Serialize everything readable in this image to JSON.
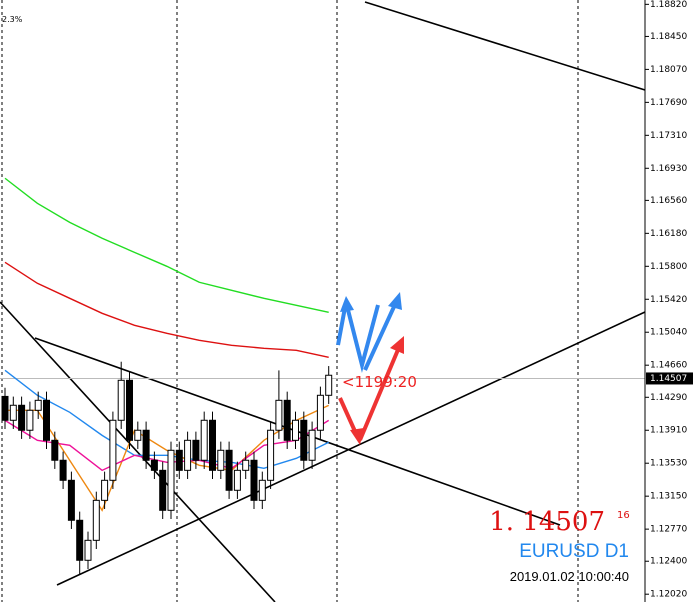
{
  "chart_data": {
    "type": "candlestick",
    "corner_label": "2.3%",
    "timer_label": "<1199:20",
    "price_display": "1. 14507",
    "price_display_sup": "16",
    "symbol": "EURUSD D1",
    "timestamp": "2019.01.02 10:00:40",
    "current_price": 1.14507,
    "ylim": [
      1.1193,
      1.1887
    ],
    "yticks": [
      {
        "value": 1.1882,
        "label": "1.18820"
      },
      {
        "value": 1.1845,
        "label": "1.18450"
      },
      {
        "value": 1.1807,
        "label": "1.18070"
      },
      {
        "value": 1.1769,
        "label": "1.17690"
      },
      {
        "value": 1.1731,
        "label": "1.17310"
      },
      {
        "value": 1.1693,
        "label": "1.16930"
      },
      {
        "value": 1.1656,
        "label": "1.16560"
      },
      {
        "value": 1.1618,
        "label": "1.16180"
      },
      {
        "value": 1.158,
        "label": "1.15800"
      },
      {
        "value": 1.1542,
        "label": "1.15420"
      },
      {
        "value": 1.1504,
        "label": "1.15040"
      },
      {
        "value": 1.1466,
        "label": "1.14660"
      },
      {
        "value": 1.1429,
        "label": "1.14290"
      },
      {
        "value": 1.1391,
        "label": "1.13910"
      },
      {
        "value": 1.1353,
        "label": "1.13530"
      },
      {
        "value": 1.1315,
        "label": "1.13150"
      },
      {
        "value": 1.1277,
        "label": "1.12770"
      },
      {
        "value": 1.124,
        "label": "1.12400"
      },
      {
        "value": 1.1202,
        "label": "1.12020"
      }
    ],
    "open": [
      1.143,
      1.14025,
      1.14198,
      1.1391,
      1.1414,
      1.14255,
      1.13794,
      1.13564,
      1.13333,
      1.12872,
      1.12411,
      1.12641,
      1.13102,
      1.13333,
      1.14025,
      1.14486,
      1.13794,
      1.1391,
      1.13564,
      1.13448,
      1.12987,
      1.13679,
      1.13448,
      1.13794,
      1.13564,
      1.14025,
      1.13448,
      1.13679,
      1.13218,
      1.13448,
      1.13564,
      1.13102,
      1.13333,
      1.1391,
      1.14255,
      1.13794,
      1.14025,
      1.13564,
      1.1391,
      1.14313
    ],
    "high": [
      1.144,
      1.14298,
      1.14298,
      1.1424,
      1.14355,
      1.14355,
      1.13894,
      1.13664,
      1.13433,
      1.12972,
      1.12741,
      1.13202,
      1.13433,
      1.14125,
      1.147,
      1.14586,
      1.1401,
      1.1401,
      1.13664,
      1.13548,
      1.13779,
      1.13779,
      1.13894,
      1.13894,
      1.14125,
      1.14125,
      1.13779,
      1.13779,
      1.13548,
      1.13664,
      1.13664,
      1.13433,
      1.1401,
      1.146,
      1.14355,
      1.14125,
      1.14125,
      1.1401,
      1.14413,
      1.1465
    ],
    "low": [
      1.13925,
      1.13925,
      1.1381,
      1.1381,
      1.1404,
      1.13694,
      1.13464,
      1.13233,
      1.12772,
      1.1225,
      1.12311,
      1.12541,
      1.13002,
      1.13233,
      1.13925,
      1.13694,
      1.13694,
      1.13464,
      1.13348,
      1.12887,
      1.12887,
      1.13348,
      1.13348,
      1.13464,
      1.13464,
      1.13348,
      1.13348,
      1.13118,
      1.13118,
      1.13348,
      1.13002,
      1.13002,
      1.13233,
      1.1381,
      1.13694,
      1.13694,
      1.13464,
      1.13464,
      1.1381,
      1.14213
    ],
    "close": [
      1.14025,
      1.14198,
      1.1391,
      1.1414,
      1.14255,
      1.13794,
      1.13564,
      1.13333,
      1.12872,
      1.12411,
      1.12641,
      1.13102,
      1.13333,
      1.14025,
      1.14486,
      1.13794,
      1.1391,
      1.13564,
      1.13448,
      1.12987,
      1.13679,
      1.13448,
      1.13794,
      1.13564,
      1.14025,
      1.13448,
      1.13679,
      1.13218,
      1.13448,
      1.13564,
      1.13102,
      1.13333,
      1.1391,
      1.14255,
      1.13794,
      1.14025,
      1.13564,
      1.1391,
      1.14313,
      1.14544
    ],
    "overlays": [
      {
        "color": "#22dd22",
        "values": [
          1.16815,
          1.16526,
          1.16307,
          1.16123,
          1.15961,
          1.158,
          1.15616,
          1.15523,
          1.15431,
          1.1535,
          1.1527
        ]
      },
      {
        "color": "#dd1111",
        "values": [
          1.15846,
          1.15604,
          1.15431,
          1.15258,
          1.1512,
          1.15028,
          1.14947,
          1.14889,
          1.14855,
          1.14831,
          1.14751
        ]
      },
      {
        "color": "#2288ee",
        "values": [
          1.14601,
          1.14313,
          1.14117,
          1.13851,
          1.13621,
          1.13621,
          1.13563,
          1.1354,
          1.13471,
          1.13586,
          1.13771
        ]
      },
      {
        "color": "#ee8811",
        "values": [
          1.1414,
          1.1414,
          1.13563,
          1.12987,
          1.13909,
          1.13678,
          1.13506,
          1.13448,
          1.13794,
          1.14024,
          1.14197
        ]
      },
      {
        "color": "#ee1199",
        "values": [
          1.14024,
          1.13794,
          1.13736,
          1.13448,
          1.13621,
          1.1354,
          1.13563,
          1.13471,
          1.13736,
          1.13794,
          1.14024
        ]
      }
    ]
  }
}
